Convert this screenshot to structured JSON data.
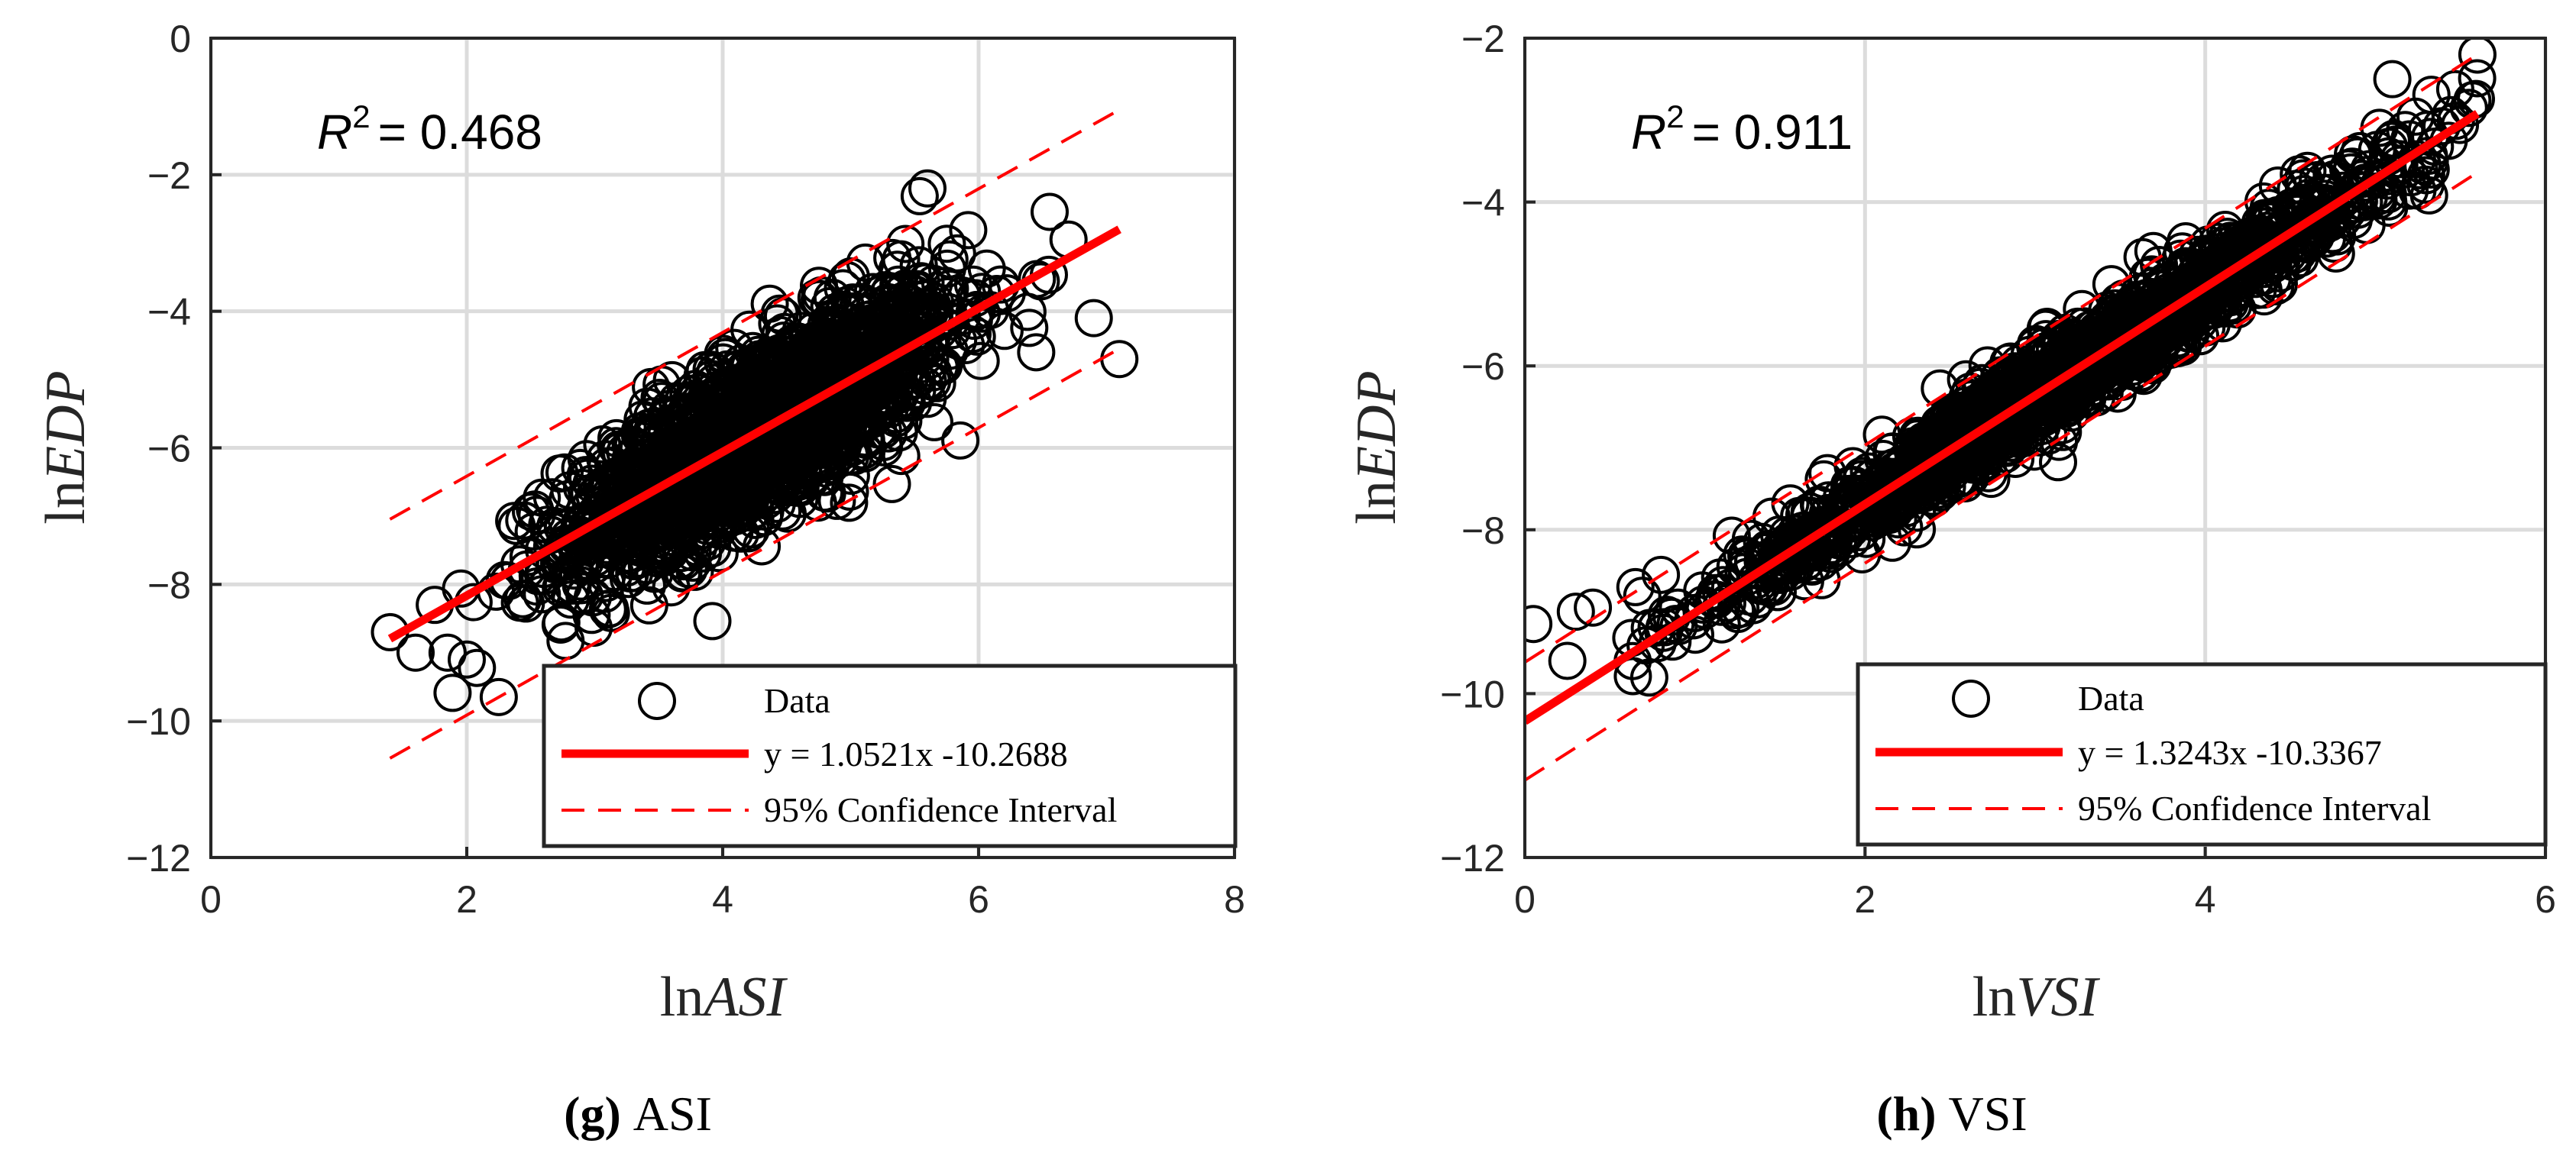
{
  "chart_data": [
    {
      "type": "scatter",
      "xlabel_prefix": "ln",
      "xlabel_var": "ASI",
      "ylabel_prefix": "ln",
      "ylabel_var": "EDP",
      "xlim": [
        0,
        8
      ],
      "ylim": [
        -12,
        0
      ],
      "xticks": [
        0,
        2,
        4,
        6,
        8
      ],
      "yticks": [
        -12,
        -10,
        -8,
        -6,
        -4,
        -2,
        0
      ],
      "xtick_labels": [
        "0",
        "2",
        "4",
        "6",
        "8"
      ],
      "ytick_labels": [
        "−12",
        "−10",
        "−8",
        "−6",
        "−4",
        "−2",
        "0"
      ],
      "r2_symbol": "R",
      "r2_sup": "2",
      "r2_value": "= 0.468",
      "fit": {
        "slope": 1.0521,
        "intercept": -10.2688,
        "x_range": [
          1.4,
          7.1
        ]
      },
      "ci": {
        "half_width": 1.75
      },
      "cloud": {
        "x_mean": 4.3,
        "x_sd": 0.75,
        "x_min": 1.4,
        "x_max": 7.1,
        "resid_sd": 0.62,
        "n": 1800
      },
      "outliers": [
        [
          1.4,
          -8.7
        ],
        [
          1.6,
          -9.0
        ],
        [
          1.75,
          -8.3
        ],
        [
          1.85,
          -9.0
        ],
        [
          2.0,
          -9.1
        ],
        [
          2.25,
          -9.65
        ],
        [
          5.6,
          -2.2
        ],
        [
          6.45,
          -4.6
        ],
        [
          6.9,
          -4.1
        ],
        [
          7.1,
          -4.7
        ]
      ],
      "legend": {
        "position": "bottom-right",
        "entries": [
          "Data",
          "y = 1.0521x -10.2688",
          "95% Confidence Interval"
        ]
      },
      "caption_letter": "(g)",
      "caption_text": "ASI"
    },
    {
      "type": "scatter",
      "xlabel_prefix": "ln",
      "xlabel_var": "VSI",
      "ylabel_prefix": "ln",
      "ylabel_var": "EDP",
      "xlim": [
        0,
        6
      ],
      "ylim": [
        -12,
        -2
      ],
      "xticks": [
        0,
        2,
        4,
        6
      ],
      "yticks": [
        -12,
        -10,
        -8,
        -6,
        -4,
        -2
      ],
      "xtick_labels": [
        "0",
        "2",
        "4",
        "6"
      ],
      "ytick_labels": [
        "−12",
        "−10",
        "−8",
        "−6",
        "−4",
        "−2"
      ],
      "r2_symbol": "R",
      "r2_sup": "2",
      "r2_value": "= 0.911",
      "fit": {
        "slope": 1.3243,
        "intercept": -10.3367,
        "x_range": [
          0.0,
          5.6
        ]
      },
      "ci": {
        "half_width": 0.72
      },
      "cloud": {
        "x_mean": 3.2,
        "x_sd": 0.95,
        "x_min": 0.6,
        "x_max": 5.6,
        "resid_sd": 0.26,
        "n": 1800
      },
      "outliers": [
        [
          0.05,
          -9.15
        ],
        [
          0.25,
          -9.6
        ],
        [
          0.3,
          -9.0
        ],
        [
          0.4,
          -8.95
        ],
        [
          0.65,
          -8.7
        ],
        [
          0.8,
          -8.55
        ],
        [
          0.9,
          -8.95
        ],
        [
          5.6,
          -2.2
        ],
        [
          5.55,
          -2.85
        ],
        [
          5.1,
          -2.5
        ]
      ],
      "legend": {
        "position": "bottom-right",
        "entries": [
          "Data",
          "y = 1.3243x -10.3367",
          "95% Confidence Interval"
        ]
      },
      "caption_letter": "(h)",
      "caption_text": "VSI"
    }
  ]
}
